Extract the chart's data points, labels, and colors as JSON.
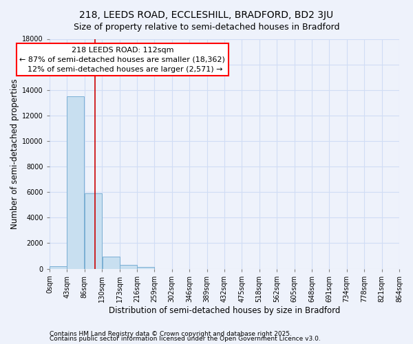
{
  "title_line1": "218, LEEDS ROAD, ECCLESHILL, BRADFORD, BD2 3JU",
  "title_line2": "Size of property relative to semi-detached houses in Bradford",
  "xlabel": "Distribution of semi-detached houses by size in Bradford",
  "ylabel": "Number of semi-detached properties",
  "bar_values": [
    200,
    13500,
    5900,
    950,
    320,
    155,
    0,
    0,
    0,
    0,
    0,
    0,
    0,
    0,
    0,
    0,
    0,
    0,
    0,
    0
  ],
  "bin_edges": [
    0,
    43,
    86,
    130,
    173,
    216,
    259,
    302,
    346,
    389,
    432,
    475,
    518,
    562,
    605,
    648,
    691,
    734,
    778,
    821,
    864
  ],
  "bin_labels": [
    "0sqm",
    "43sqm",
    "86sqm",
    "130sqm",
    "173sqm",
    "216sqm",
    "259sqm",
    "302sqm",
    "346sqm",
    "389sqm",
    "432sqm",
    "475sqm",
    "518sqm",
    "562sqm",
    "605sqm",
    "648sqm",
    "691sqm",
    "734sqm",
    "778sqm",
    "821sqm",
    "864sqm"
  ],
  "bar_color": "#c8dff0",
  "bar_edge_color": "#7aafd4",
  "vline_x": 112,
  "vline_color": "#cc0000",
  "annotation_line1": "218 LEEDS ROAD: 112sqm",
  "annotation_line2": "← 87% of semi-detached houses are smaller (18,362)",
  "annotation_line3": "  12% of semi-detached houses are larger (2,571) →",
  "annotation_box_color": "white",
  "annotation_box_edge_color": "red",
  "ylim": [
    0,
    18000
  ],
  "yticks": [
    0,
    2000,
    4000,
    6000,
    8000,
    10000,
    12000,
    14000,
    16000,
    18000
  ],
  "background_color": "#eef2fb",
  "grid_color": "#d0ddf5",
  "footnote1": "Contains HM Land Registry data © Crown copyright and database right 2025.",
  "footnote2": "Contains public sector information licensed under the Open Government Licence v3.0.",
  "title_fontsize": 10,
  "subtitle_fontsize": 9,
  "axis_label_fontsize": 8.5,
  "tick_fontsize": 7,
  "annotation_fontsize": 8,
  "footnote_fontsize": 6.5
}
